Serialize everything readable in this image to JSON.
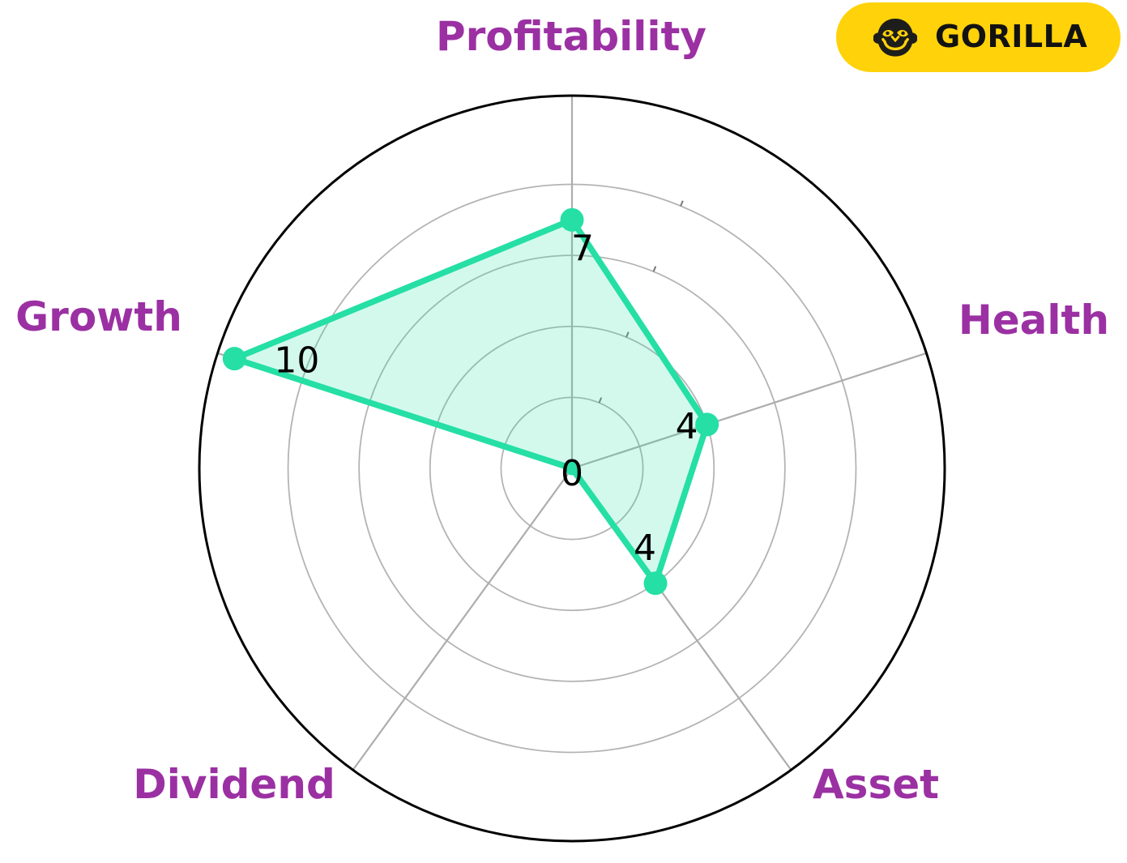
{
  "chart_data": {
    "type": "radar",
    "title": "",
    "categories": [
      "Profitability",
      "Health",
      "Asset",
      "Dividend",
      "Growth"
    ],
    "values": [
      7,
      4,
      4,
      0,
      10
    ],
    "value_labels": [
      "7",
      "4",
      "4",
      "0",
      "10"
    ],
    "angles_deg": [
      90,
      18,
      -54,
      -126,
      162
    ],
    "r_axis": {
      "min": 0,
      "max": 10.5,
      "grid_ticks": [
        2,
        4,
        6,
        8
      ],
      "tick_mark_angle_deg": 67.5
    },
    "grid": "on",
    "legend": "none",
    "colors": {
      "line": "#25DFA5",
      "marker": "#25DFA5",
      "fill": "rgba(37,223,165,0.2)",
      "category_label": "#9B30A3",
      "value_label": "#000000",
      "grid_line": "#B4B4B4",
      "spoke_line": "#ADADAD",
      "outer_ring": "#000000",
      "r_tick": "#777777"
    }
  },
  "badge": {
    "label": "GORILLA",
    "icon": "gorilla-icon",
    "bg_color": "#FFD20A",
    "text_color": "#121212",
    "icon_color": "#1D1D1B"
  }
}
